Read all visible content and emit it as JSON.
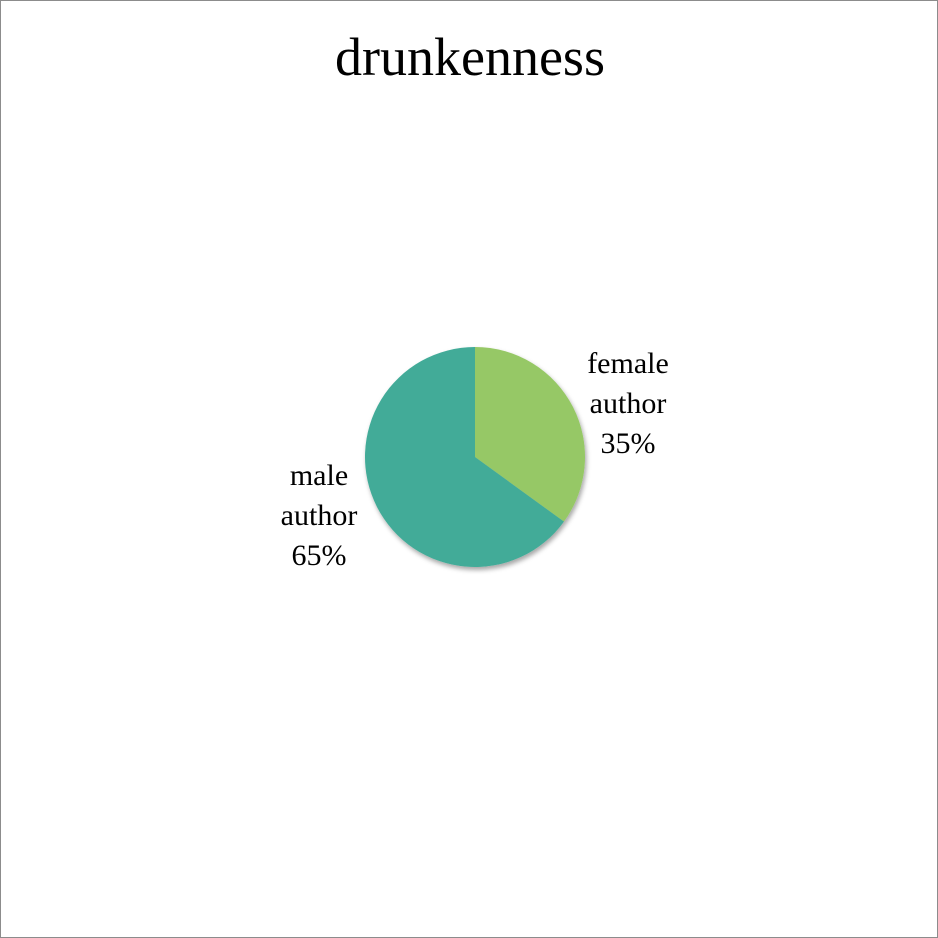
{
  "chart_data": {
    "type": "pie",
    "title": "drunkenness",
    "slices": [
      {
        "name": "female author",
        "label_lines": [
          "female",
          "author",
          "35%"
        ],
        "value": 35,
        "color": "#96c866"
      },
      {
        "name": "male author",
        "label_lines": [
          "male",
          "author",
          "65%"
        ],
        "value": 65,
        "color": "#42ab98"
      }
    ],
    "start_angle_deg": 0,
    "direction": "clockwise",
    "legend": "none"
  }
}
